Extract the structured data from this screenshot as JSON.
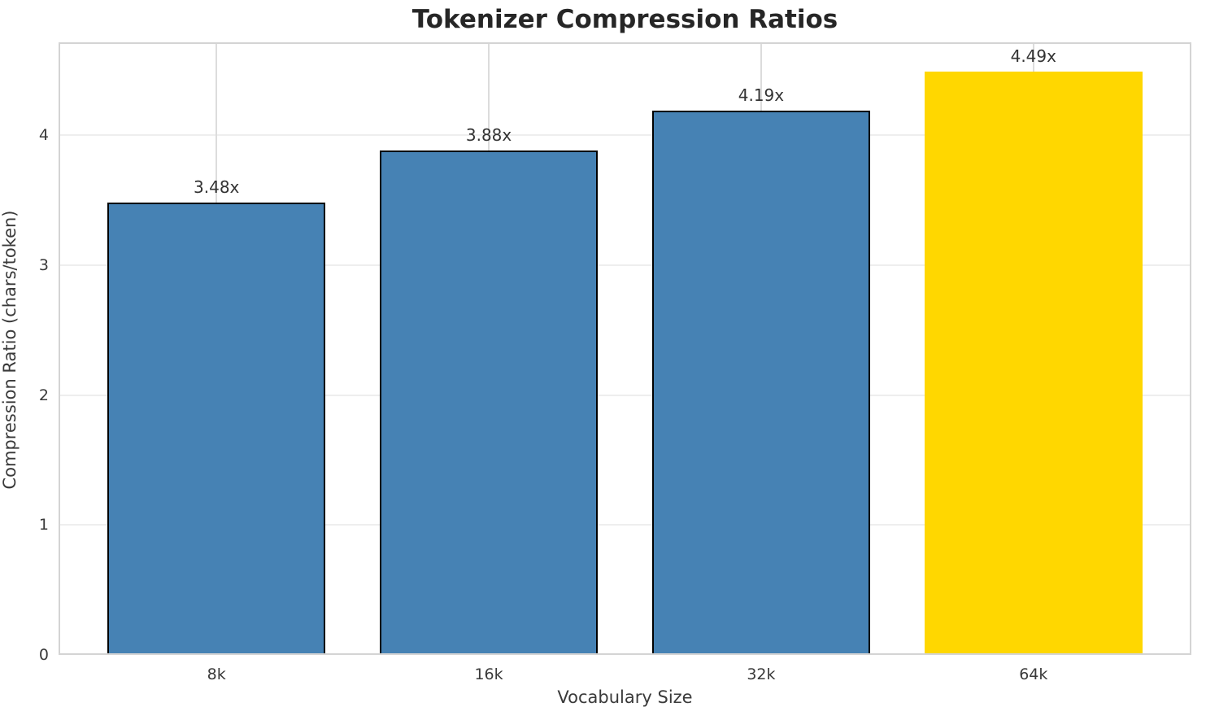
{
  "chart_data": {
    "type": "bar",
    "title": "Tokenizer Compression Ratios",
    "xlabel": "Vocabulary Size",
    "ylabel": "Compression Ratio (chars/token)",
    "categories": [
      "8k",
      "16k",
      "32k",
      "64k"
    ],
    "values": [
      3.48,
      3.88,
      4.19,
      4.49
    ],
    "bar_labels": [
      "3.48x",
      "3.88x",
      "4.19x",
      "4.49x"
    ],
    "yticks": [
      0,
      1,
      2,
      3,
      4
    ],
    "ylim": [
      0,
      4.716
    ],
    "xlim": [
      -0.58,
      3.58
    ],
    "bar_width": 0.8,
    "grid": true,
    "legend": false,
    "bar_colors": [
      "#4682B4",
      "#4682B4",
      "#4682B4",
      "#FFD700"
    ],
    "edge_colors": [
      "#000000",
      "#000000",
      "#000000",
      "none"
    ],
    "highlight_index": 3
  },
  "style_colors": {
    "spine": "#d4d4d4",
    "vgrid": "#dcdcdc",
    "hgrid": "#eeeeee",
    "text": "#3a3a3a",
    "title": "#262626"
  }
}
